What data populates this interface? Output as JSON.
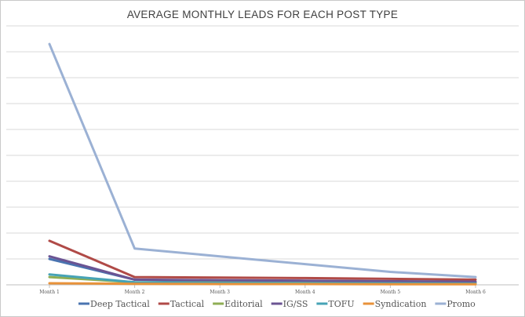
{
  "chart_data": {
    "type": "line",
    "title": "AVERAGE MONTHLY LEADS FOR EACH POST TYPE",
    "xlabel": "",
    "ylabel": "",
    "categories": [
      "Month 1",
      "Month 2",
      "Month 3",
      "Month 4",
      "Month 5",
      "Month 6"
    ],
    "ylim": [
      0,
      100
    ],
    "y_ticks_shown": false,
    "grid": true,
    "legend_position": "bottom",
    "series": [
      {
        "name": "Deep Tactical",
        "color": "#4a74b0",
        "values": [
          10,
          2,
          1.5,
          1.2,
          1.0,
          0.8
        ]
      },
      {
        "name": "Tactical",
        "color": "#b04a47",
        "values": [
          17,
          3,
          2.8,
          2.6,
          2.3,
          2.0
        ]
      },
      {
        "name": "Editorial",
        "color": "#8fae54",
        "values": [
          3,
          1,
          0.9,
          0.8,
          0.7,
          0.6
        ]
      },
      {
        "name": "IG/SS",
        "color": "#6b5493",
        "values": [
          11,
          2,
          1.8,
          1.6,
          1.4,
          1.2
        ]
      },
      {
        "name": "TOFU",
        "color": "#46a3b6",
        "values": [
          4,
          1,
          0.8,
          0.7,
          0.6,
          0.5
        ]
      },
      {
        "name": "Syndication",
        "color": "#e8923a",
        "values": [
          0.6,
          0.4,
          0.3,
          0.3,
          0.2,
          0.2
        ]
      },
      {
        "name": "Promo",
        "color": "#9bb1d4",
        "values": [
          93,
          14,
          11,
          8,
          5,
          3
        ]
      }
    ]
  }
}
